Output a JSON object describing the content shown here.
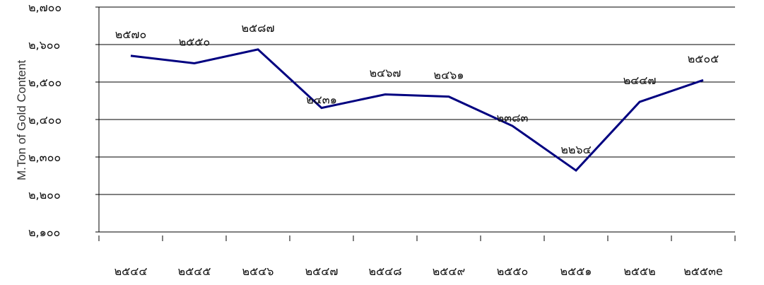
{
  "chart_data": {
    "type": "line",
    "title": "",
    "xlabel": "",
    "ylabel": "M.Ton of Gold Content",
    "ylim": [
      2100,
      2700
    ],
    "y_ticks": [
      "๒,๗๐๐",
      "๒,๖๐๐",
      "๒,๕๐๐",
      "๒,๔๐๐",
      "๒,๓๐๐",
      "๒,๒๐๐",
      "๒,๑๐๐"
    ],
    "y_tick_values": [
      2700,
      2600,
      2500,
      2400,
      2300,
      2200,
      2100
    ],
    "categories": [
      "๒๕๔๔",
      "๒๕๔๕",
      "๒๕๔๖",
      "๒๕๔๗",
      "๒๕๔๘",
      "๒๕๔๙",
      "๒๕๕๐",
      "๒๕๕๑",
      "๒๕๕๒",
      "๒๕๕๓e"
    ],
    "values": [
      2570,
      2550,
      2587,
      2431,
      2467,
      2461,
      2383,
      2264,
      2447,
      2505
    ],
    "data_labels": [
      "๒๕๗๐",
      "๒๕๕๐",
      "๒๕๘๗",
      "๒๔๓๑",
      "๒๔๖๗",
      "๒๔๖๑",
      "๒๓๘๓",
      "๒๒๖๔",
      "๒๔๔๗",
      "๒๕๐๕"
    ],
    "grid": true,
    "line_color": "#000080"
  }
}
